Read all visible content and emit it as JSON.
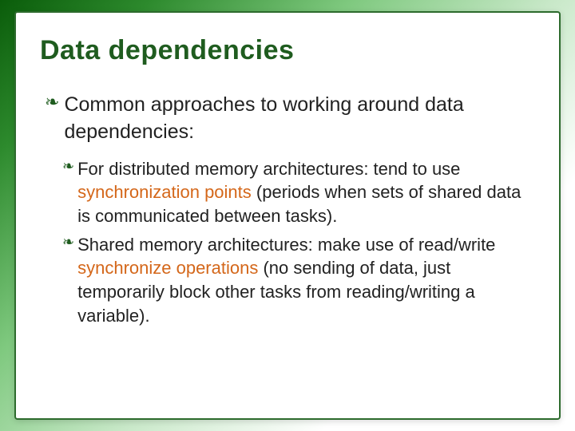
{
  "slide": {
    "title": "Data dependencies",
    "main_bullet": "Common approaches to working around data dependencies:",
    "sub_bullets": [
      {
        "prefix": "For distributed memory architectures: tend to use ",
        "highlight": "synchronization points",
        "suffix": " (periods when sets of shared data is communicated between tasks)."
      },
      {
        "prefix": "Shared memory architectures: make use of read/write ",
        "highlight": "synchronize operations",
        "suffix": " (no sending of data, just temporarily block other tasks from reading/writing a variable)."
      }
    ],
    "colors": {
      "title_color": "#1f5c1f",
      "highlight_color": "#d4671a",
      "border_color": "#2d6b2d",
      "text_color": "#222222",
      "background_gradient_start": "#0a5c0a",
      "background_gradient_end": "#ffffff"
    },
    "typography": {
      "title_fontsize": 34,
      "main_bullet_fontsize": 25,
      "sub_bullet_fontsize": 22,
      "font_family": "Tahoma"
    },
    "bullet_glyph": "❧"
  }
}
